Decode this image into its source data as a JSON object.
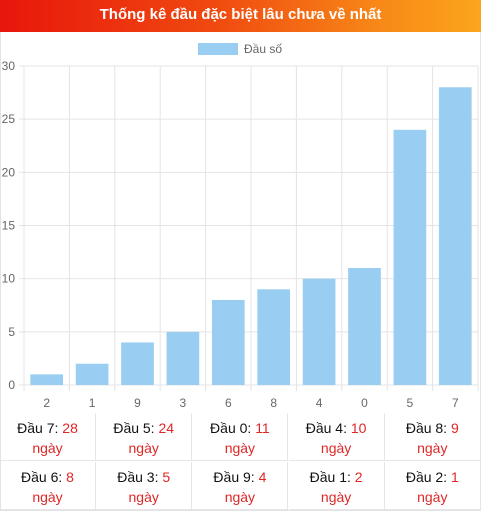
{
  "header": {
    "title": "Thống kê đầu đặc biệt lâu chưa về nhất"
  },
  "chart_data": {
    "type": "bar",
    "legend": {
      "label": "Đầu số",
      "position": "top-center",
      "color": "#99cdf2"
    },
    "categories": [
      "2",
      "1",
      "9",
      "3",
      "6",
      "8",
      "4",
      "0",
      "5",
      "7"
    ],
    "values": [
      1,
      2,
      4,
      5,
      8,
      9,
      10,
      11,
      24,
      28
    ],
    "ylim": [
      0,
      30
    ],
    "yticks": [
      "0",
      "5",
      "10",
      "15",
      "20",
      "25",
      "30"
    ],
    "bar_color": "#99cdf2",
    "grid": true
  },
  "table": {
    "unit": "ngày",
    "rows": [
      [
        {
          "label": "Đầu 7:",
          "value": "28"
        },
        {
          "label": "Đầu 5:",
          "value": "24"
        },
        {
          "label": "Đầu 0:",
          "value": "11"
        },
        {
          "label": "Đầu 4:",
          "value": "10"
        },
        {
          "label": "Đầu 8:",
          "value": "9"
        }
      ],
      [
        {
          "label": "Đầu 6:",
          "value": "8"
        },
        {
          "label": "Đầu 3:",
          "value": "5"
        },
        {
          "label": "Đầu 9:",
          "value": "4"
        },
        {
          "label": "Đầu 1:",
          "value": "2"
        },
        {
          "label": "Đầu 2:",
          "value": "1"
        }
      ]
    ]
  }
}
